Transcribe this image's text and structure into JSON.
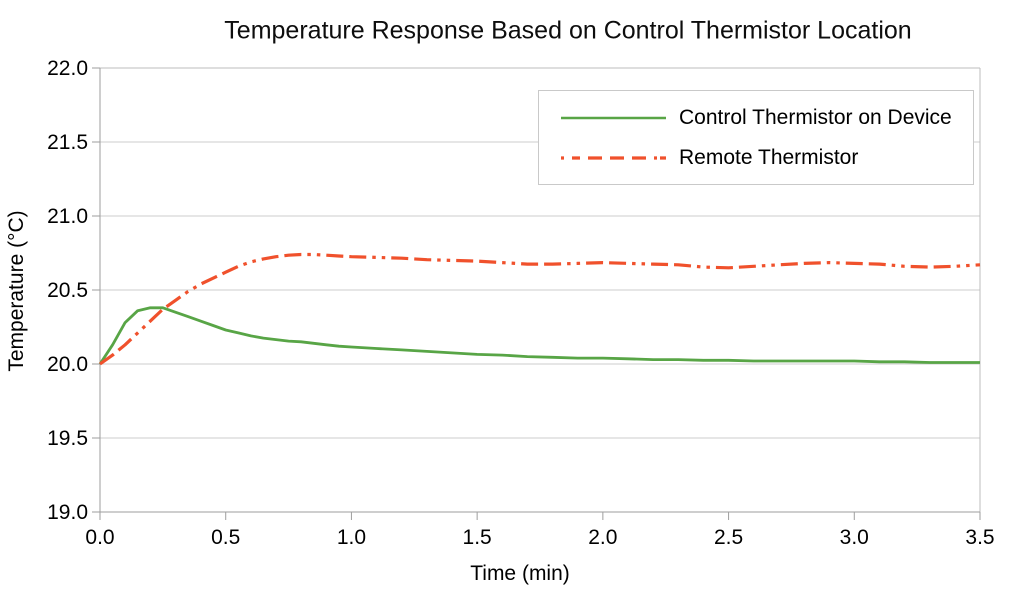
{
  "title": "Temperature Response Based on Control Thermistor Location",
  "colors": {
    "background": "#ffffff",
    "grid": "#cccccc",
    "axis": "#9e9e9e",
    "plot_border": "#bdbdbd",
    "text": "#000000",
    "legend_border": "#c9c9c9",
    "series_green": "#58a546",
    "series_red": "#f0512c"
  },
  "chart_data": {
    "type": "line",
    "title": "Temperature Response Based on Control Thermistor Location",
    "xlabel": "Time (min)",
    "ylabel": "Temperature (°C)",
    "xlim": [
      0.0,
      3.5
    ],
    "ylim": [
      19.0,
      22.0
    ],
    "x_ticks": [
      0.0,
      0.5,
      1.0,
      1.5,
      2.0,
      2.5,
      3.0,
      3.5
    ],
    "x_tick_labels": [
      "0.0",
      "0.5",
      "1.0",
      "1.5",
      "2.0",
      "2.5",
      "3.0",
      "3.5"
    ],
    "y_ticks": [
      19.0,
      19.5,
      20.0,
      20.5,
      21.0,
      21.5,
      22.0
    ],
    "y_tick_labels": [
      "19.0",
      "19.5",
      "20.0",
      "20.5",
      "21.0",
      "21.5",
      "22.0"
    ],
    "grid": "horizontal",
    "legend_position": "top-right-inside",
    "series": [
      {
        "name": "Control Thermistor on Device",
        "color": "#58a546",
        "style": "solid",
        "x": [
          0.0,
          0.05,
          0.1,
          0.15,
          0.2,
          0.25,
          0.3,
          0.35,
          0.4,
          0.45,
          0.5,
          0.55,
          0.6,
          0.65,
          0.7,
          0.75,
          0.8,
          0.85,
          0.9,
          0.95,
          1.0,
          1.1,
          1.2,
          1.3,
          1.4,
          1.5,
          1.6,
          1.7,
          1.8,
          1.9,
          2.0,
          2.1,
          2.2,
          2.3,
          2.4,
          2.5,
          2.6,
          2.7,
          2.8,
          2.9,
          3.0,
          3.1,
          3.2,
          3.3,
          3.4,
          3.5
        ],
        "y": [
          20.0,
          20.13,
          20.28,
          20.36,
          20.38,
          20.38,
          20.35,
          20.32,
          20.29,
          20.26,
          20.23,
          20.21,
          20.19,
          20.175,
          20.165,
          20.155,
          20.15,
          20.14,
          20.13,
          20.12,
          20.115,
          20.105,
          20.095,
          20.085,
          20.075,
          20.065,
          20.06,
          20.05,
          20.045,
          20.04,
          20.04,
          20.035,
          20.03,
          20.03,
          20.025,
          20.025,
          20.02,
          20.02,
          20.02,
          20.02,
          20.02,
          20.015,
          20.015,
          20.01,
          20.01,
          20.01
        ]
      },
      {
        "name": "Remote Thermistor",
        "color": "#f0512c",
        "style": "dash-dot-dot",
        "x": [
          0.0,
          0.05,
          0.1,
          0.15,
          0.2,
          0.25,
          0.3,
          0.35,
          0.4,
          0.45,
          0.5,
          0.55,
          0.6,
          0.65,
          0.7,
          0.75,
          0.8,
          0.85,
          0.9,
          0.95,
          1.0,
          1.1,
          1.2,
          1.3,
          1.4,
          1.5,
          1.6,
          1.7,
          1.8,
          1.9,
          2.0,
          2.1,
          2.2,
          2.3,
          2.4,
          2.5,
          2.6,
          2.7,
          2.8,
          2.9,
          3.0,
          3.1,
          3.2,
          3.3,
          3.4,
          3.5
        ],
        "y": [
          20.0,
          20.06,
          20.13,
          20.21,
          20.29,
          20.37,
          20.43,
          20.49,
          20.54,
          20.58,
          20.62,
          20.66,
          20.69,
          20.71,
          20.725,
          20.735,
          20.74,
          20.74,
          20.735,
          20.73,
          20.725,
          20.72,
          20.715,
          20.705,
          20.7,
          20.695,
          20.685,
          20.675,
          20.675,
          20.68,
          20.685,
          20.68,
          20.675,
          20.67,
          20.655,
          20.65,
          20.66,
          20.67,
          20.68,
          20.685,
          20.68,
          20.675,
          20.66,
          20.655,
          20.66,
          20.67
        ]
      }
    ]
  }
}
